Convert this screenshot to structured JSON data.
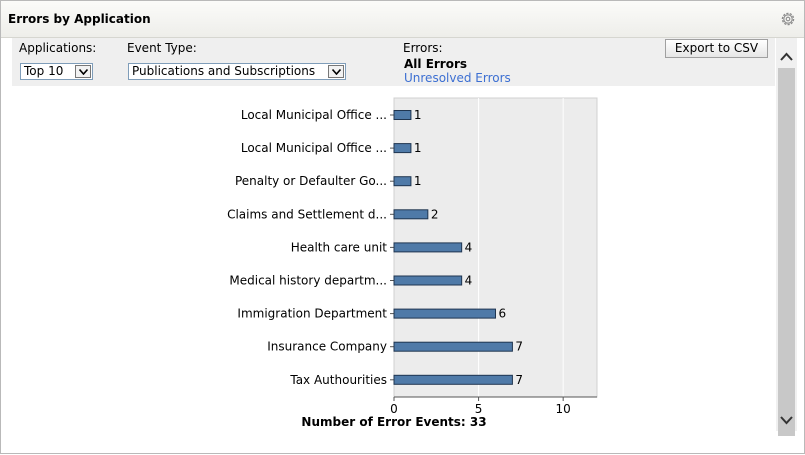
{
  "panel": {
    "title": "Errors by Application",
    "settings_icon": "gear-icon"
  },
  "filters": {
    "applications_label": "Applications:",
    "applications_value": "Top 10",
    "event_type_label": "Event Type:",
    "event_type_value": "Publications and Subscriptions",
    "errors_label": "Errors:",
    "errors_selected": "All Errors",
    "errors_link": "Unresolved Errors",
    "export_label": "Export to CSV"
  },
  "scrollbar": {
    "up_icon": "chevron-up-icon",
    "down_icon": "chevron-down-icon"
  },
  "colors": {
    "bar_fill": "#4f7aa8",
    "bar_stroke": "#1f3550",
    "plot_bg": "#ececec",
    "link": "#3c6fd2"
  },
  "chart_data": {
    "type": "bar",
    "orientation": "horizontal",
    "categories": [
      "Local Municipal Office ...",
      "Local Municipal Office ...",
      "Penalty or Defaulter Go...",
      "Claims and Settlement d...",
      "Health care unit",
      "Medical history departm...",
      "Immigration Department",
      "Insurance Company",
      "Tax Authourities"
    ],
    "values": [
      1,
      1,
      1,
      2,
      4,
      4,
      6,
      7,
      7
    ],
    "xticks": [
      "0",
      "5",
      "10"
    ],
    "xlim": [
      0,
      12
    ],
    "xlabel": "Number of Error Events: 33",
    "grid": true
  }
}
